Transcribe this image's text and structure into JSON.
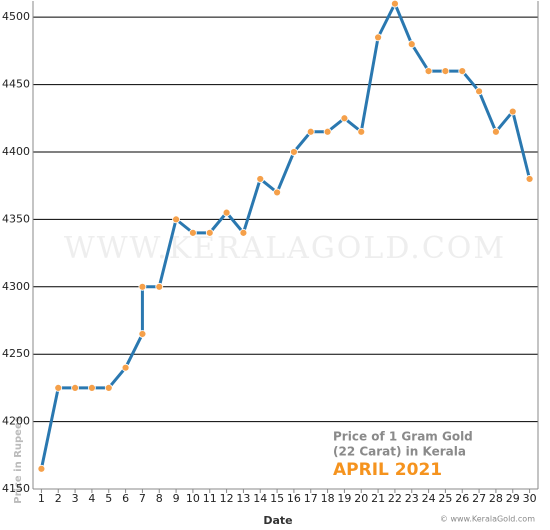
{
  "chart_data": {
    "type": "line",
    "x": [
      1,
      2,
      3,
      4,
      5,
      6,
      7,
      7,
      8,
      9,
      10,
      11,
      12,
      13,
      14,
      15,
      16,
      17,
      18,
      19,
      20,
      21,
      22,
      23,
      24,
      25,
      26,
      27,
      28,
      29,
      30
    ],
    "values": [
      4165,
      4225,
      4225,
      4225,
      4225,
      4240,
      4265,
      4300,
      4300,
      4350,
      4340,
      4340,
      4355,
      4340,
      4380,
      4370,
      4400,
      4415,
      4415,
      4425,
      4415,
      4485,
      4510,
      4480,
      4460,
      4460,
      4460,
      4445,
      4415,
      4430,
      4380
    ],
    "color": "#2a78b0",
    "marker_color": "#f5a04a",
    "xlim": [
      0.5,
      30.5
    ],
    "ylim": [
      4150,
      4512
    ],
    "xticks": [
      1,
      2,
      3,
      4,
      5,
      6,
      7,
      8,
      9,
      10,
      11,
      12,
      13,
      14,
      15,
      16,
      17,
      18,
      19,
      20,
      21,
      22,
      23,
      24,
      25,
      26,
      27,
      28,
      29,
      30
    ],
    "yticks": [
      4150,
      4200,
      4250,
      4300,
      4350,
      4400,
      4450,
      4500
    ],
    "grid": true,
    "xlabel": "Date",
    "ylabel": "Price in Rupees",
    "annotations": [
      "Price of 1 Gram Gold",
      "(22 Carat) in Kerala",
      "APRIL 2021"
    ],
    "watermark": "WWW.KERALAGOLD.COM",
    "credit": "© www.KeralaGold.com"
  }
}
